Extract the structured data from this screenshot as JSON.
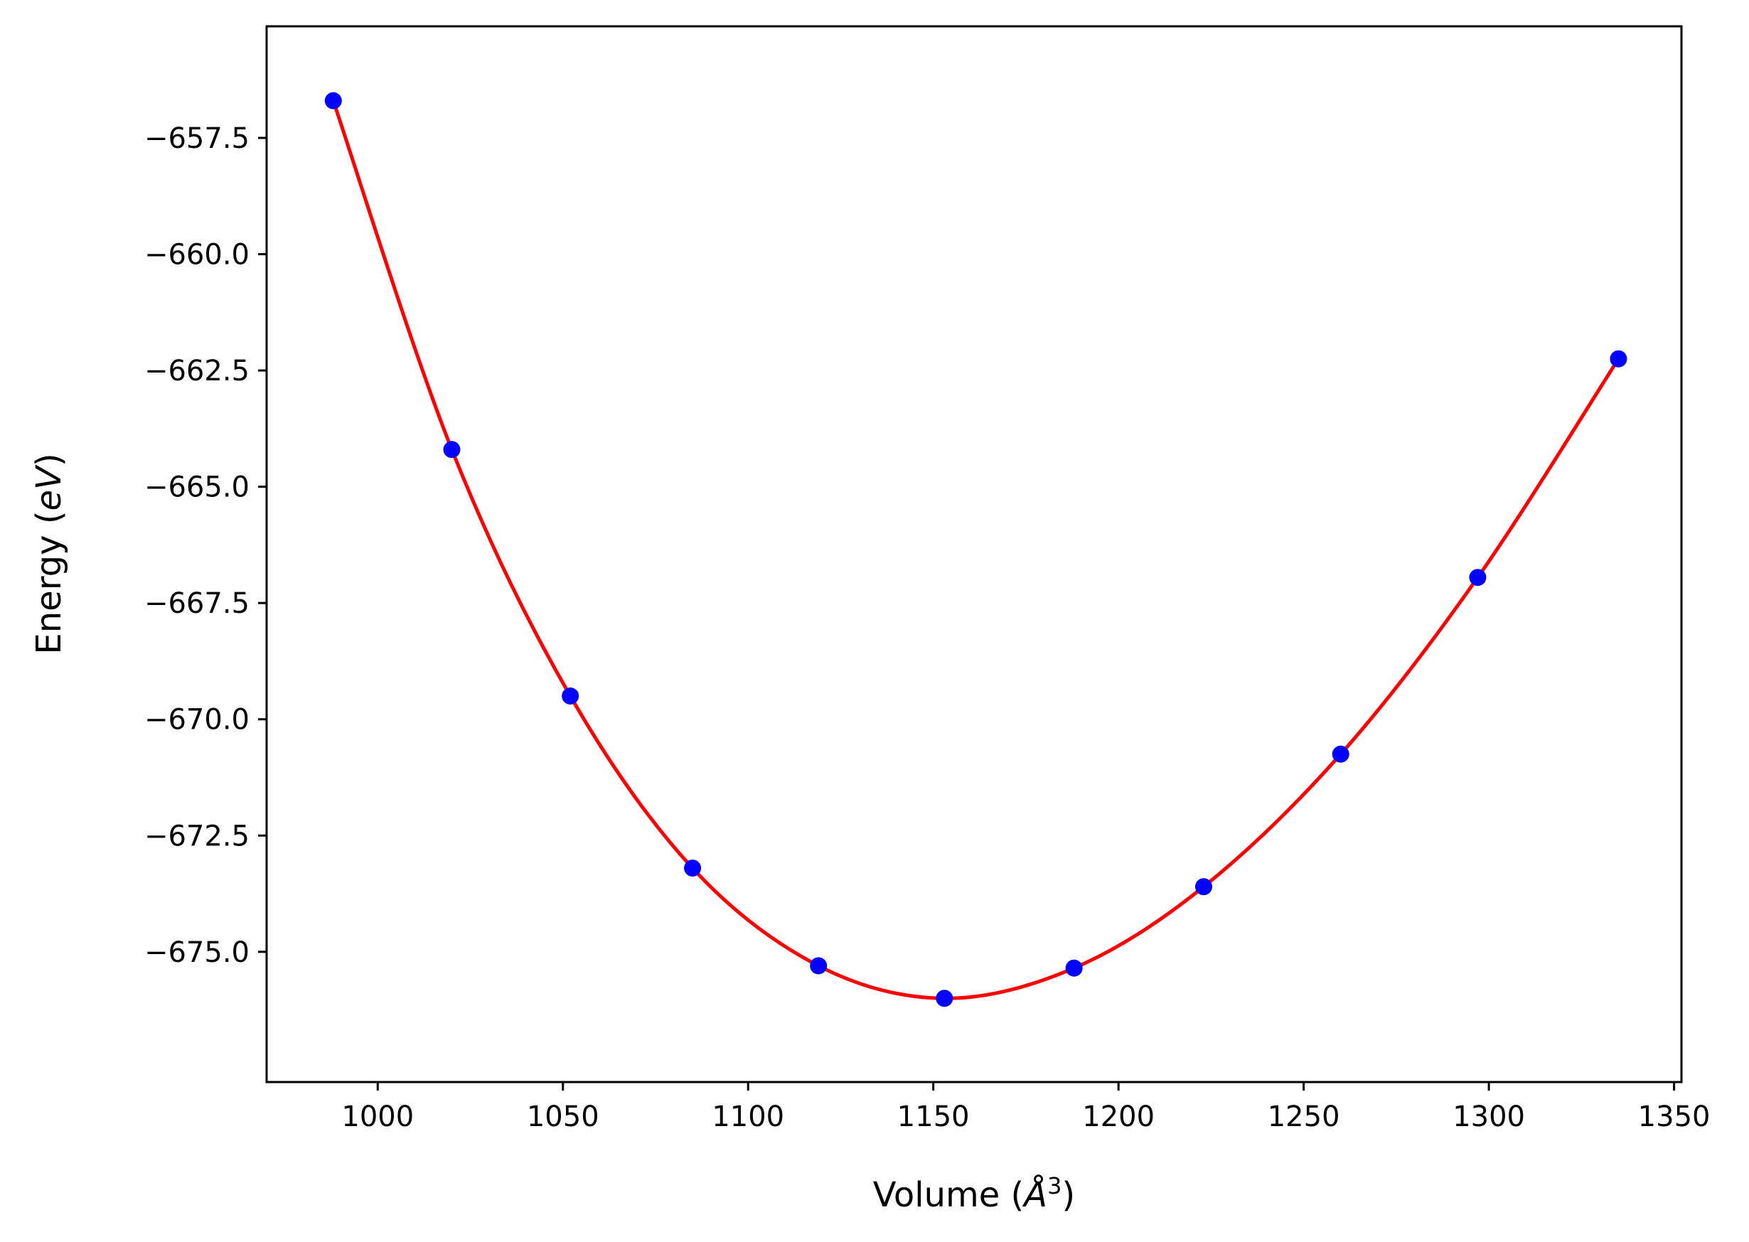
{
  "chart_data": {
    "type": "scatter",
    "xlabel_parts": [
      "Volume (",
      "Å",
      "3",
      ")"
    ],
    "ylabel_parts": [
      "Energy (",
      "eV",
      ")"
    ],
    "xlim": [
      970,
      1352
    ],
    "ylim": [
      -677.8,
      -655.1
    ],
    "xticks": [
      1000,
      1050,
      1100,
      1150,
      1200,
      1250,
      1300,
      1350
    ],
    "xtick_labels": [
      "1000",
      "1050",
      "1100",
      "1150",
      "1200",
      "1250",
      "1300",
      "1350"
    ],
    "yticks": [
      -657.5,
      -660.0,
      -662.5,
      -665.0,
      -667.5,
      -670.0,
      -672.5,
      -675.0
    ],
    "ytick_labels": [
      "−657.5",
      "−660.0",
      "−662.5",
      "−665.0",
      "−667.5",
      "−670.0",
      "−672.5",
      "−675.0"
    ],
    "series": [
      {
        "type": "scatter",
        "color": "#0000ff",
        "x": [
          988,
          1020,
          1052,
          1085,
          1119,
          1153,
          1188,
          1223,
          1260,
          1297,
          1335
        ],
        "y": [
          -656.7,
          -664.2,
          -669.5,
          -673.2,
          -675.3,
          -676.0,
          -675.35,
          -673.6,
          -670.75,
          -666.95,
          -662.25
        ]
      },
      {
        "type": "line",
        "color": "#ff0000",
        "x": [
          988,
          1020,
          1052,
          1085,
          1119,
          1153,
          1188,
          1223,
          1260,
          1297,
          1335
        ],
        "y": [
          -656.7,
          -664.2,
          -669.5,
          -673.2,
          -675.3,
          -676.0,
          -675.35,
          -673.6,
          -670.75,
          -666.95,
          -662.25
        ]
      }
    ]
  }
}
